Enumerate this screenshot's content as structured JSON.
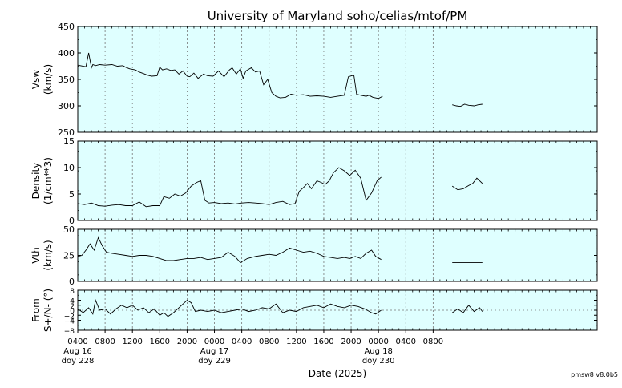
{
  "title": "University of Maryland  soho/celias/mtof/PM",
  "xlabel": "Date (2025)",
  "version": "pmsw8 v8.0b5",
  "colors": {
    "panel_bg": "#dfffff",
    "line": "#000000",
    "grid": "#777777"
  },
  "chart_data": [
    {
      "type": "line",
      "name": "Vsw",
      "ylabel": [
        "Vsw",
        "(km/s)"
      ],
      "ylim": [
        250,
        450
      ],
      "yticks": [
        250,
        300,
        350,
        400,
        450
      ],
      "grid": true,
      "segments": [
        {
          "x": [
            0,
            1.2,
            1.6,
            2.0,
            2.2,
            2.6,
            3.2,
            4.0,
            5.0,
            5.8,
            6.6,
            7.0,
            7.6,
            8.4,
            9.0,
            9.6,
            10.2,
            10.8,
            11.6,
            12.0,
            12.4,
            13.0,
            13.6,
            14.2,
            14.8,
            15.4,
            16.0,
            16.4,
            17.0,
            17.6,
            18.4,
            19.0,
            19.8,
            20.6,
            21.4,
            22.2,
            22.6,
            23.2,
            23.8,
            24.2,
            24.6,
            25.4,
            26.0,
            26.6,
            27.2,
            27.8,
            28.4,
            29.0,
            29.6,
            30.4,
            31.2,
            32.0,
            33.0,
            34.0,
            35.0,
            36.0,
            37.0,
            38.0,
            39.0,
            39.6,
            40.4,
            40.8,
            41.4,
            42.2,
            42.6,
            43.2,
            44.0,
            44.6
          ],
          "y": [
            377,
            374,
            400,
            372,
            378,
            376,
            378,
            377,
            378,
            375,
            376,
            373,
            370,
            368,
            364,
            361,
            358,
            356,
            357,
            373,
            368,
            370,
            367,
            368,
            360,
            366,
            356,
            355,
            362,
            352,
            360,
            357,
            356,
            366,
            355,
            368,
            372,
            360,
            370,
            352,
            366,
            372,
            364,
            366,
            340,
            350,
            325,
            318,
            315,
            316,
            322,
            320,
            321,
            318,
            319,
            318,
            316,
            318,
            320,
            355,
            358,
            322,
            320,
            318,
            320,
            316,
            314,
            318
          ]
        },
        {
          "x": [
            54.8,
            55.4,
            56.0,
            56.6,
            57.2,
            58.0,
            58.6,
            59.2
          ],
          "y": [
            302,
            300,
            299,
            303,
            301,
            300,
            302,
            303
          ]
        }
      ]
    },
    {
      "type": "line",
      "name": "Density",
      "ylabel": [
        "Density",
        "(1/cm**3)"
      ],
      "ylim": [
        0,
        15
      ],
      "yticks": [
        0,
        5,
        10,
        15
      ],
      "grid": true,
      "segments": [
        {
          "x": [
            0,
            1.0,
            2.0,
            3.0,
            4.0,
            5.0,
            6.0,
            7.0,
            8.0,
            9.0,
            10.0,
            11.0,
            12.0,
            12.6,
            13.4,
            14.2,
            15.0,
            15.8,
            16.6,
            17.4,
            18.0,
            18.6,
            19.2,
            20.0,
            21.0,
            22.0,
            23.0,
            24.0,
            25.0,
            26.0,
            27.0,
            28.0,
            29.0,
            30.0,
            31.0,
            31.8,
            32.4,
            33.0,
            33.6,
            34.2,
            35.0,
            35.6,
            36.2,
            36.8,
            37.4,
            38.2,
            39.0,
            39.8,
            40.6,
            41.4,
            42.2,
            43.0,
            43.8,
            44.4
          ],
          "y": [
            3.2,
            3.0,
            3.3,
            2.8,
            2.7,
            2.9,
            3.0,
            2.8,
            2.8,
            3.5,
            2.6,
            2.8,
            2.8,
            4.5,
            4.2,
            5.0,
            4.6,
            5.2,
            6.5,
            7.2,
            7.5,
            3.8,
            3.3,
            3.4,
            3.2,
            3.3,
            3.1,
            3.3,
            3.4,
            3.3,
            3.2,
            3.0,
            3.4,
            3.6,
            3.0,
            3.2,
            5.5,
            6.2,
            7.0,
            6.0,
            7.5,
            7.2,
            6.8,
            7.5,
            9.0,
            10.0,
            9.4,
            8.5,
            9.5,
            8.0,
            3.8,
            5.2,
            7.5,
            8.2
          ]
        },
        {
          "x": [
            54.8,
            55.6,
            56.4,
            57.2,
            57.8,
            58.4,
            59.2
          ],
          "y": [
            6.5,
            5.8,
            6.0,
            6.6,
            7.0,
            8.0,
            7.0
          ]
        }
      ]
    },
    {
      "type": "line",
      "name": "Vth",
      "ylabel": [
        "Vth",
        "(km/s)"
      ],
      "ylim": [
        0,
        50
      ],
      "yticks": [
        0,
        25,
        50
      ],
      "grid": true,
      "segments": [
        {
          "x": [
            0,
            0.6,
            1.2,
            1.8,
            2.4,
            3.0,
            3.6,
            4.2,
            5.0,
            6.0,
            7.0,
            8.0,
            9.0,
            10.0,
            11.0,
            12.0,
            13.0,
            14.0,
            15.0,
            16.0,
            17.0,
            18.0,
            19.0,
            20.0,
            21.0,
            22.0,
            23.0,
            23.8,
            24.8,
            26.0,
            27.0,
            28.0,
            29.0,
            30.0,
            31.0,
            32.0,
            33.0,
            34.0,
            35.0,
            36.0,
            37.0,
            38.0,
            39.0,
            39.8,
            40.6,
            41.4,
            42.2,
            43.0,
            43.6,
            44.4
          ],
          "y": [
            24,
            25,
            30,
            36,
            30,
            42,
            34,
            28,
            27,
            26,
            25,
            24,
            25,
            25,
            24,
            22,
            20,
            20,
            21,
            22,
            22,
            23,
            21,
            22,
            23,
            28,
            24,
            18,
            22,
            24,
            25,
            26,
            25,
            28,
            32,
            30,
            28,
            29,
            27,
            24,
            23,
            22,
            23,
            22,
            24,
            22,
            27,
            30,
            24,
            21
          ]
        },
        {
          "x": [
            54.8,
            56.0,
            57.2,
            58.4,
            59.2
          ],
          "y": [
            18,
            18,
            18,
            18,
            18
          ]
        }
      ]
    },
    {
      "type": "line",
      "name": "From",
      "ylabel": [
        "From",
        "S+/N- (°)"
      ],
      "ylim": [
        -8,
        8
      ],
      "yticks": [
        -8,
        -4,
        -2,
        0,
        2,
        4,
        8
      ],
      "ytick_labels": [
        "−8",
        "−4",
        "−2",
        "0",
        "2",
        "4",
        "8"
      ],
      "grid": true,
      "zero_line": true,
      "segments": [
        {
          "x": [
            0,
            0.8,
            1.6,
            2.2,
            2.6,
            3.2,
            4.0,
            4.8,
            5.6,
            6.4,
            7.2,
            8.0,
            8.8,
            9.6,
            10.4,
            11.2,
            12.0,
            12.6,
            13.2,
            14.0,
            14.8,
            15.4,
            16.0,
            16.6,
            17.2,
            18.0,
            19.0,
            20.0,
            21.0,
            22.0,
            23.0,
            24.0,
            25.0,
            26.0,
            27.0,
            28.0,
            29.0,
            30.0,
            31.0,
            32.0,
            33.0,
            34.0,
            35.0,
            36.0,
            37.0,
            38.0,
            39.0,
            40.0,
            41.0,
            42.0,
            43.0,
            43.6,
            44.4
          ],
          "y": [
            0.5,
            -1.0,
            1.0,
            -1.5,
            4.0,
            0.0,
            0.5,
            -1.5,
            0.5,
            2.0,
            1.0,
            2.0,
            0.0,
            1.0,
            -1.0,
            0.5,
            -2.0,
            -1.0,
            -2.5,
            -1.0,
            1.0,
            2.5,
            4.0,
            3.0,
            -0.5,
            0.0,
            -0.5,
            0.0,
            -1.0,
            -0.5,
            0.0,
            0.5,
            -0.5,
            0.0,
            1.0,
            0.5,
            2.5,
            -1.0,
            0.0,
            -0.5,
            1.0,
            1.5,
            2.0,
            1.0,
            2.5,
            1.5,
            1.0,
            2.0,
            1.5,
            0.5,
            -1.0,
            -1.5,
            0.0
          ]
        },
        {
          "x": [
            54.8,
            55.6,
            56.4,
            57.2,
            58.0,
            58.8,
            59.2
          ],
          "y": [
            -1.0,
            0.5,
            -1.0,
            2.0,
            -0.5,
            1.0,
            -0.5
          ]
        }
      ]
    }
  ],
  "x_axis": {
    "xlim": [
      0,
      76
    ],
    "ticks": [
      {
        "hour": 0,
        "label": "0400",
        "day": "Aug 16",
        "doy": "doy 228"
      },
      {
        "hour": 4,
        "label": "0800"
      },
      {
        "hour": 8,
        "label": "1200"
      },
      {
        "hour": 12,
        "label": "1600"
      },
      {
        "hour": 16,
        "label": "2000"
      },
      {
        "hour": 20,
        "label": "0000",
        "day": "Aug 17",
        "doy": "doy 229"
      },
      {
        "hour": 24,
        "label": "0400"
      },
      {
        "hour": 28,
        "label": "0800"
      },
      {
        "hour": 32,
        "label": "1200"
      },
      {
        "hour": 36,
        "label": "1600"
      },
      {
        "hour": 40,
        "label": "2000"
      },
      {
        "hour": 44,
        "label": "0000",
        "day": "Aug 18",
        "doy": "doy 230"
      },
      {
        "hour": 48,
        "label": "0400"
      },
      {
        "hour": 52,
        "label": "0800"
      }
    ]
  }
}
